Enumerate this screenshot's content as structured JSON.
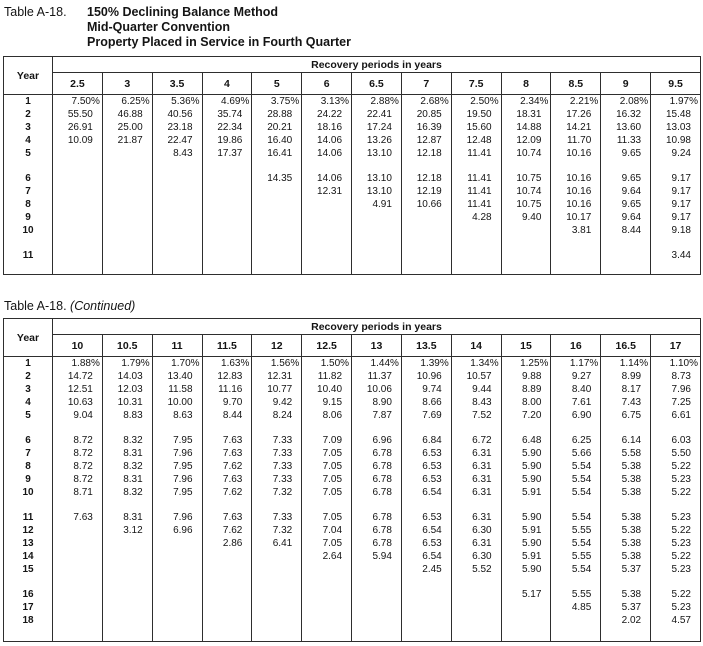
{
  "page": {
    "background": "#ffffff",
    "text_color": "#141414",
    "border_color": "#2e2e2e"
  },
  "tables": [
    {
      "label": "Table A-18.",
      "title_lines": [
        "150% Declining Balance Method",
        "Mid-Quarter Convention",
        "Property Placed in Service in Fourth Quarter"
      ],
      "year_header": "Year",
      "span_header": "Recovery periods in years",
      "columns": [
        "2.5",
        "3",
        "3.5",
        "4",
        "5",
        "6",
        "6.5",
        "7",
        "7.5",
        "8",
        "8.5",
        "9",
        "9.5"
      ],
      "row_groups": [
        [
          {
            "year": "1",
            "values": [
              "7.50%",
              "6.25%",
              "5.36%",
              "4.69%",
              "3.75%",
              "3.13%",
              "2.88%",
              "2.68%",
              "2.50%",
              "2.34%",
              "2.21%",
              "2.08%",
              "1.97%"
            ]
          },
          {
            "year": "2",
            "values": [
              "55.50",
              "46.88",
              "40.56",
              "35.74",
              "28.88",
              "24.22",
              "22.41",
              "20.85",
              "19.50",
              "18.31",
              "17.26",
              "16.32",
              "15.48"
            ]
          },
          {
            "year": "3",
            "values": [
              "26.91",
              "25.00",
              "23.18",
              "22.34",
              "20.21",
              "18.16",
              "17.24",
              "16.39",
              "15.60",
              "14.88",
              "14.21",
              "13.60",
              "13.03"
            ]
          },
          {
            "year": "4",
            "values": [
              "10.09",
              "21.87",
              "22.47",
              "19.86",
              "16.40",
              "14.06",
              "13.26",
              "12.87",
              "12.48",
              "12.09",
              "11.70",
              "11.33",
              "10.98"
            ]
          },
          {
            "year": "5",
            "values": [
              "",
              "",
              "8.43",
              "17.37",
              "16.41",
              "14.06",
              "13.10",
              "12.18",
              "11.41",
              "10.74",
              "10.16",
              "9.65",
              "9.24"
            ]
          }
        ],
        [
          {
            "year": "6",
            "values": [
              "",
              "",
              "",
              "",
              "14.35",
              "14.06",
              "13.10",
              "12.18",
              "11.41",
              "10.75",
              "10.16",
              "9.65",
              "9.17"
            ]
          },
          {
            "year": "7",
            "values": [
              "",
              "",
              "",
              "",
              "",
              "12.31",
              "13.10",
              "12.19",
              "11.41",
              "10.74",
              "10.16",
              "9.64",
              "9.17"
            ]
          },
          {
            "year": "8",
            "values": [
              "",
              "",
              "",
              "",
              "",
              "",
              "4.91",
              "10.66",
              "11.41",
              "10.75",
              "10.16",
              "9.65",
              "9.17"
            ]
          },
          {
            "year": "9",
            "values": [
              "",
              "",
              "",
              "",
              "",
              "",
              "",
              "",
              "4.28",
              "9.40",
              "10.17",
              "9.64",
              "9.17"
            ]
          },
          {
            "year": "10",
            "values": [
              "",
              "",
              "",
              "",
              "",
              "",
              "",
              "",
              "",
              "",
              "3.81",
              "8.44",
              "9.18"
            ]
          }
        ],
        [
          {
            "year": "11",
            "values": [
              "",
              "",
              "",
              "",
              "",
              "",
              "",
              "",
              "",
              "",
              "",
              "",
              "3.44"
            ]
          }
        ]
      ]
    },
    {
      "label": "Table A-18.",
      "continued": "(Continued)",
      "year_header": "Year",
      "span_header": "Recovery periods in years",
      "columns": [
        "10",
        "10.5",
        "11",
        "11.5",
        "12",
        "12.5",
        "13",
        "13.5",
        "14",
        "15",
        "16",
        "16.5",
        "17"
      ],
      "row_groups": [
        [
          {
            "year": "1",
            "values": [
              "1.88%",
              "1.79%",
              "1.70%",
              "1.63%",
              "1.56%",
              "1.50%",
              "1.44%",
              "1.39%",
              "1.34%",
              "1.25%",
              "1.17%",
              "1.14%",
              "1.10%"
            ]
          },
          {
            "year": "2",
            "values": [
              "14.72",
              "14.03",
              "13.40",
              "12.83",
              "12.31",
              "11.82",
              "11.37",
              "10.96",
              "10.57",
              "9.88",
              "9.27",
              "8.99",
              "8.73"
            ]
          },
          {
            "year": "3",
            "values": [
              "12.51",
              "12.03",
              "11.58",
              "11.16",
              "10.77",
              "10.40",
              "10.06",
              "9.74",
              "9.44",
              "8.89",
              "8.40",
              "8.17",
              "7.96"
            ]
          },
          {
            "year": "4",
            "values": [
              "10.63",
              "10.31",
              "10.00",
              "9.70",
              "9.42",
              "9.15",
              "8.90",
              "8.66",
              "8.43",
              "8.00",
              "7.61",
              "7.43",
              "7.25"
            ]
          },
          {
            "year": "5",
            "values": [
              "9.04",
              "8.83",
              "8.63",
              "8.44",
              "8.24",
              "8.06",
              "7.87",
              "7.69",
              "7.52",
              "7.20",
              "6.90",
              "6.75",
              "6.61"
            ]
          }
        ],
        [
          {
            "year": "6",
            "values": [
              "8.72",
              "8.32",
              "7.95",
              "7.63",
              "7.33",
              "7.09",
              "6.96",
              "6.84",
              "6.72",
              "6.48",
              "6.25",
              "6.14",
              "6.03"
            ]
          },
          {
            "year": "7",
            "values": [
              "8.72",
              "8.31",
              "7.96",
              "7.63",
              "7.33",
              "7.05",
              "6.78",
              "6.53",
              "6.31",
              "5.90",
              "5.66",
              "5.58",
              "5.50"
            ]
          },
          {
            "year": "8",
            "values": [
              "8.72",
              "8.32",
              "7.95",
              "7.62",
              "7.33",
              "7.05",
              "6.78",
              "6.53",
              "6.31",
              "5.90",
              "5.54",
              "5.38",
              "5.22"
            ]
          },
          {
            "year": "9",
            "values": [
              "8.72",
              "8.31",
              "7.96",
              "7.63",
              "7.33",
              "7.05",
              "6.78",
              "6.53",
              "6.31",
              "5.90",
              "5.54",
              "5.38",
              "5.23"
            ]
          },
          {
            "year": "10",
            "values": [
              "8.71",
              "8.32",
              "7.95",
              "7.62",
              "7.32",
              "7.05",
              "6.78",
              "6.54",
              "6.31",
              "5.91",
              "5.54",
              "5.38",
              "5.22"
            ]
          }
        ],
        [
          {
            "year": "11",
            "values": [
              "7.63",
              "8.31",
              "7.96",
              "7.63",
              "7.33",
              "7.05",
              "6.78",
              "6.53",
              "6.31",
              "5.90",
              "5.54",
              "5.38",
              "5.23"
            ]
          },
          {
            "year": "12",
            "values": [
              "",
              "3.12",
              "6.96",
              "7.62",
              "7.32",
              "7.04",
              "6.78",
              "6.54",
              "6.30",
              "5.91",
              "5.55",
              "5.38",
              "5.22"
            ]
          },
          {
            "year": "13",
            "values": [
              "",
              "",
              "",
              "2.86",
              "6.41",
              "7.05",
              "6.78",
              "6.53",
              "6.31",
              "5.90",
              "5.54",
              "5.38",
              "5.23"
            ]
          },
          {
            "year": "14",
            "values": [
              "",
              "",
              "",
              "",
              "",
              "2.64",
              "5.94",
              "6.54",
              "6.30",
              "5.91",
              "5.55",
              "5.38",
              "5.22"
            ]
          },
          {
            "year": "15",
            "values": [
              "",
              "",
              "",
              "",
              "",
              "",
              "",
              "2.45",
              "5.52",
              "5.90",
              "5.54",
              "5.37",
              "5.23"
            ]
          }
        ],
        [
          {
            "year": "16",
            "values": [
              "",
              "",
              "",
              "",
              "",
              "",
              "",
              "",
              "",
              "5.17",
              "5.55",
              "5.38",
              "5.22"
            ]
          },
          {
            "year": "17",
            "values": [
              "",
              "",
              "",
              "",
              "",
              "",
              "",
              "",
              "",
              "",
              "4.85",
              "5.37",
              "5.23"
            ]
          },
          {
            "year": "18",
            "values": [
              "",
              "",
              "",
              "",
              "",
              "",
              "",
              "",
              "",
              "",
              "",
              "2.02",
              "4.57"
            ]
          }
        ]
      ]
    }
  ]
}
